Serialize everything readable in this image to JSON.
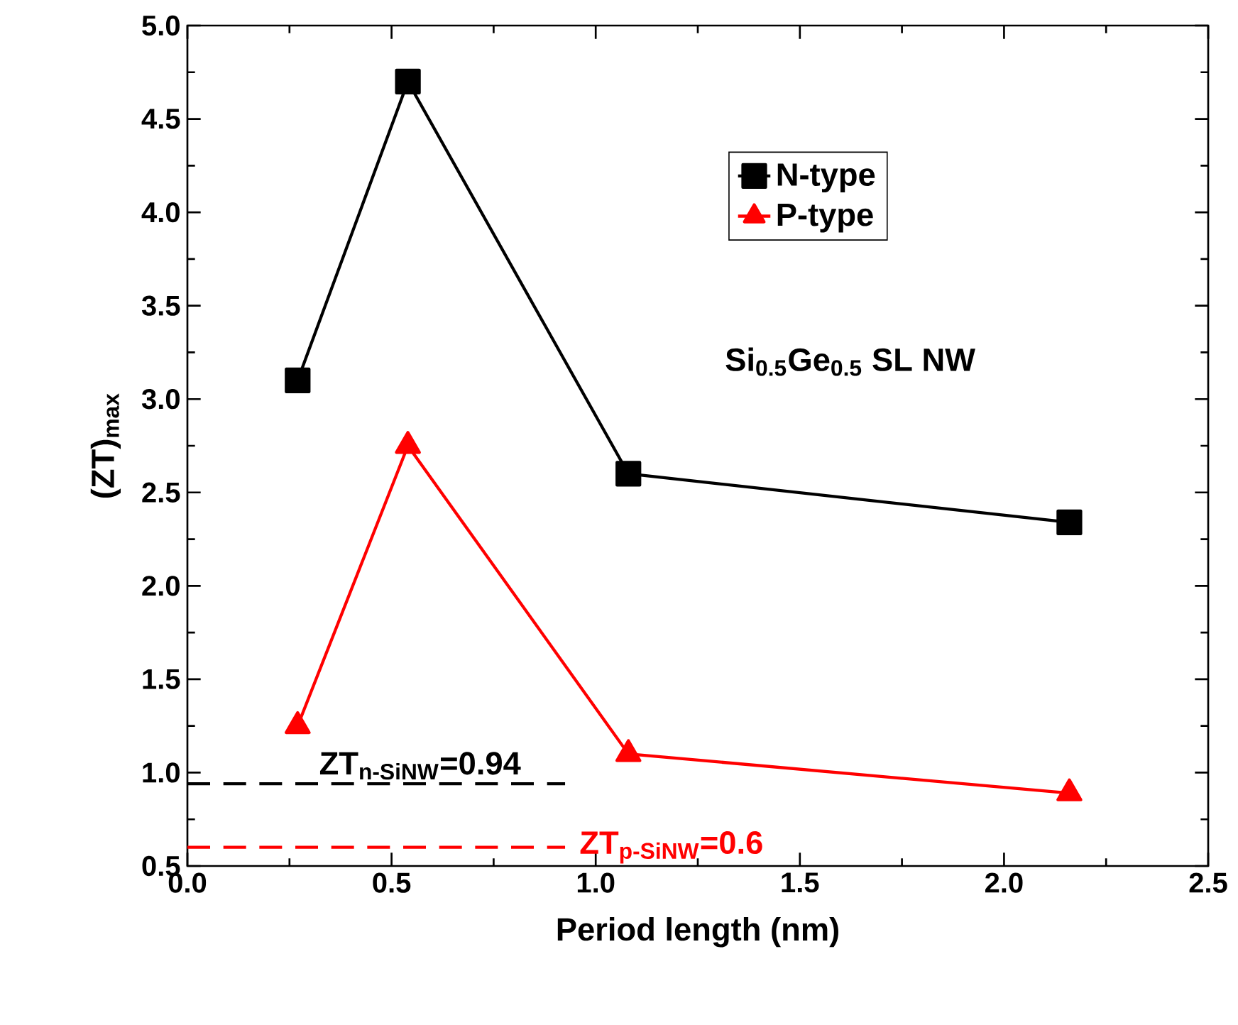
{
  "chart_data": {
    "type": "line",
    "xlabel": "Period length (nm)",
    "ylabel": "(ZT)$_{max}$",
    "x": [
      0.27,
      0.54,
      1.08,
      2.16
    ],
    "series": [
      {
        "name": "N-type",
        "color": "#000000",
        "marker": "square",
        "values": [
          3.1,
          4.7,
          2.6,
          2.34
        ]
      },
      {
        "name": "P-type",
        "color": "#ff0000",
        "marker": "triangle",
        "values": [
          1.25,
          2.75,
          1.1,
          0.89
        ]
      }
    ],
    "xlim": [
      0,
      2.5
    ],
    "xticks": [
      {
        "value": 0,
        "label": "0.0"
      },
      {
        "value": 0.5,
        "label": "0.5"
      },
      {
        "value": 1,
        "label": "1.0"
      },
      {
        "value": 1.5,
        "label": "1.5"
      },
      {
        "value": 2,
        "label": "2.0"
      },
      {
        "value": 2.5,
        "label": "2.5"
      }
    ],
    "ylim": [
      0.5,
      5.0
    ],
    "yticks": [
      {
        "value": 0.5,
        "label": "0.5"
      },
      {
        "value": 1,
        "label": "1.0"
      },
      {
        "value": 1.5,
        "label": "1.5"
      },
      {
        "value": 2,
        "label": "2.0"
      },
      {
        "value": 2.5,
        "label": "2.5"
      },
      {
        "value": 3,
        "label": "3.0"
      },
      {
        "value": 3.5,
        "label": "3.5"
      },
      {
        "value": 4,
        "label": "4.0"
      },
      {
        "value": 4.5,
        "label": "4.5"
      },
      {
        "value": 5,
        "label": "5.0"
      }
    ],
    "ref_lines": [
      {
        "axis": "y",
        "value": 0.94,
        "label": "ZT$_{n-SiNW}$=0.94",
        "color": "#000000",
        "line_style": "dashed"
      },
      {
        "axis": "y",
        "value": 0.6,
        "label": "ZT$_{p-SiNW}$=0.6",
        "color": "#ff0000",
        "line_style": "dashed"
      }
    ],
    "annotations": [
      "Si$_{0.5}$Ge$_{0.5}$ SL NW"
    ],
    "legend": "top right",
    "grid": false
  }
}
